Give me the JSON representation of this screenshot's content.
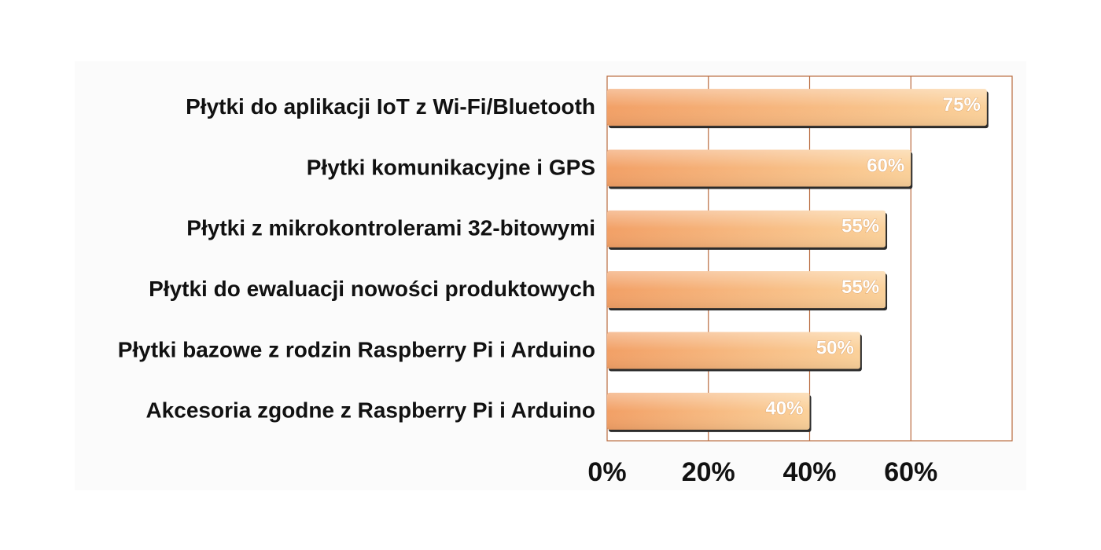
{
  "chart_data": {
    "type": "bar",
    "orientation": "horizontal",
    "categories": [
      "Płytki do aplikacji IoT z Wi-Fi/Bluetooth",
      "Płytki komunikacyjne i GPS",
      "Płytki z mikrokontrolerami 32-bitowymi",
      "Płytki do ewaluacji nowości produktowych",
      "Płytki bazowe z rodzin Raspberry Pi i Arduino",
      "Akcesoria zgodne z Raspberry Pi i Arduino"
    ],
    "values": [
      75,
      60,
      55,
      55,
      50,
      40
    ],
    "value_labels": [
      "75%",
      "60%",
      "55%",
      "55%",
      "50%",
      "40%"
    ],
    "x_ticks": [
      "0%",
      "20%",
      "40%",
      "60%"
    ],
    "xlim": [
      0,
      80
    ],
    "unit": "%",
    "grid": true,
    "legend": "none",
    "colors": {
      "bar_light": "#fbd19a",
      "bar_dark": "#f2a066",
      "bar_shadow": "#2b2b2b",
      "grid": "#b96a3e",
      "plot_background": "#ffffff",
      "panel_background": "#fbfbfb"
    }
  }
}
